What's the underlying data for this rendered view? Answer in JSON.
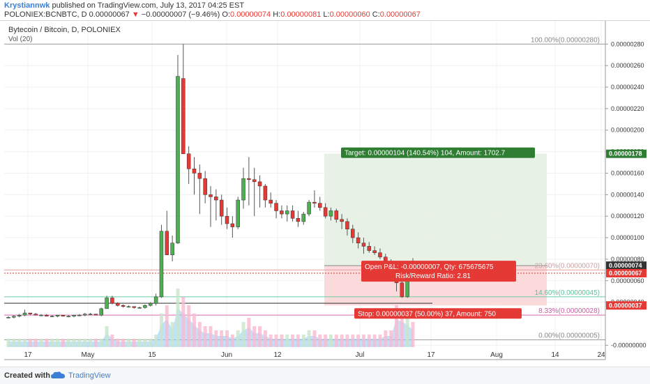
{
  "header": {
    "author": "Krystiannwk",
    "published_text": "published on TradingView.com, July 13, 2017 04:25 EST",
    "symbol": "POLONIEX:BCNBTC, D",
    "last": "0.00000067",
    "change": "−0.00000007 (−9.46%)",
    "o_label": "O:",
    "o_val": "0.00000074",
    "h_label": "H:",
    "h_val": "0.00000081",
    "l_label": "L:",
    "l_val": "0.00000060",
    "c_label": "C:",
    "c_val": "0.00000067"
  },
  "legend": {
    "title": "Bytecoin / Bitcoin, D, POLONIEX",
    "vol": "Vol (20)"
  },
  "footer": {
    "created": "Created with",
    "brand": "TradingView"
  },
  "colors": {
    "up": "#4caf50",
    "down": "#e53935",
    "target_bg": "#e6efe3",
    "stop_bg": "#f9d6d6",
    "axis": "#555555"
  },
  "chart_data": {
    "type": "candlestick",
    "title": "Bytecoin / Bitcoin, D, POLONIEX",
    "y_ticks": [
      "0.00000280",
      "0.00000260",
      "0.00000240",
      "0.00000220",
      "0.00000200",
      "0.00000180",
      "0.00000160",
      "0.00000140",
      "0.00000120",
      "0.00000100",
      "0.00000080",
      "0.00000060",
      "0.00000040",
      "-0.00000000"
    ],
    "y_tick_values": [
      280,
      260,
      240,
      220,
      200,
      180,
      160,
      140,
      120,
      100,
      80,
      60,
      40,
      0
    ],
    "ylim_e8": [
      -3,
      286
    ],
    "x_ticks": [
      "17",
      "May",
      "15",
      "Jun",
      "12",
      "Jul",
      "17",
      "Aug",
      "14",
      "24"
    ],
    "candles_e8": [
      [
        26,
        27,
        25,
        26
      ],
      [
        26,
        28,
        25,
        27
      ],
      [
        27,
        29,
        26,
        28
      ],
      [
        28,
        33,
        27,
        30
      ],
      [
        30,
        30,
        28,
        29
      ],
      [
        29,
        30,
        28,
        28
      ],
      [
        28,
        29,
        27,
        28
      ],
      [
        28,
        29,
        27,
        27
      ],
      [
        27,
        28,
        27,
        27
      ],
      [
        27,
        28,
        26,
        28
      ],
      [
        28,
        28,
        27,
        27
      ],
      [
        27,
        28,
        26,
        27
      ],
      [
        27,
        28,
        26,
        28
      ],
      [
        28,
        29,
        27,
        28
      ],
      [
        28,
        30,
        27,
        29
      ],
      [
        29,
        30,
        28,
        29
      ],
      [
        29,
        29,
        28,
        28
      ],
      [
        28,
        35,
        27,
        34
      ],
      [
        34,
        46,
        34,
        44
      ],
      [
        44,
        46,
        38,
        39
      ],
      [
        39,
        40,
        36,
        37
      ],
      [
        37,
        38,
        35,
        36
      ],
      [
        36,
        37,
        35,
        36
      ],
      [
        36,
        36,
        34,
        35
      ],
      [
        35,
        36,
        34,
        35
      ],
      [
        35,
        38,
        34,
        37
      ],
      [
        37,
        40,
        36,
        39
      ],
      [
        39,
        48,
        37,
        45
      ],
      [
        45,
        112,
        44,
        106
      ],
      [
        106,
        125,
        84,
        84
      ],
      [
        84,
        102,
        78,
        95
      ],
      [
        95,
        270,
        94,
        250
      ],
      [
        248,
        280,
        200,
        178
      ],
      [
        178,
        185,
        150,
        164
      ],
      [
        164,
        175,
        140,
        160
      ],
      [
        160,
        168,
        122,
        155
      ],
      [
        155,
        162,
        132,
        140
      ],
      [
        140,
        148,
        110,
        138
      ],
      [
        138,
        145,
        116,
        135
      ],
      [
        135,
        140,
        112,
        120
      ],
      [
        120,
        128,
        108,
        113
      ],
      [
        113,
        120,
        100,
        110
      ],
      [
        110,
        138,
        108,
        135
      ],
      [
        135,
        165,
        127,
        155
      ],
      [
        155,
        175,
        130,
        154
      ],
      [
        154,
        165,
        120,
        152
      ],
      [
        152,
        158,
        128,
        148
      ],
      [
        148,
        150,
        128,
        135
      ],
      [
        135,
        142,
        128,
        132
      ],
      [
        132,
        135,
        118,
        125
      ],
      [
        125,
        130,
        118,
        122
      ],
      [
        122,
        130,
        115,
        125
      ],
      [
        125,
        130,
        115,
        118
      ],
      [
        118,
        125,
        110,
        115
      ],
      [
        115,
        124,
        112,
        122
      ],
      [
        122,
        135,
        120,
        133
      ],
      [
        133,
        144,
        128,
        132
      ],
      [
        132,
        138,
        125,
        128
      ],
      [
        128,
        132,
        118,
        120
      ],
      [
        120,
        128,
        116,
        125
      ],
      [
        125,
        127,
        114,
        117
      ],
      [
        117,
        122,
        108,
        115
      ],
      [
        115,
        118,
        102,
        108
      ],
      [
        108,
        112,
        95,
        100
      ],
      [
        100,
        105,
        90,
        95
      ],
      [
        95,
        100,
        85,
        92
      ],
      [
        92,
        96,
        86,
        88
      ],
      [
        88,
        92,
        84,
        86
      ],
      [
        86,
        90,
        80,
        82
      ],
      [
        82,
        85,
        75,
        76
      ],
      [
        76,
        80,
        72,
        74
      ],
      [
        74,
        75,
        50,
        58
      ],
      [
        58,
        75,
        44,
        45
      ],
      [
        45,
        74,
        44,
        72
      ],
      [
        74,
        81,
        60,
        67
      ]
    ],
    "volumes_rel": [
      2,
      2,
      2,
      2,
      2,
      2,
      2,
      2,
      2,
      2,
      2,
      2,
      2,
      2,
      2,
      2,
      2,
      2,
      5,
      3,
      2,
      2,
      2,
      2,
      2,
      2,
      2,
      3,
      8,
      10,
      6,
      14,
      12,
      10,
      8,
      6,
      5,
      5,
      4,
      4,
      4,
      3,
      4,
      6,
      7,
      5,
      5,
      4,
      3,
      3,
      3,
      3,
      3,
      3,
      3,
      4,
      4,
      3,
      3,
      3,
      3,
      3,
      3,
      3,
      3,
      3,
      3,
      3,
      3,
      4,
      4,
      10,
      9,
      8,
      6
    ],
    "fib_levels": [
      {
        "label": "100.00%(0.00000280)",
        "value": 280
      },
      {
        "label": "23.60%(0.00000070)",
        "value": 70
      },
      {
        "label": "14.60%(0.00000045)",
        "value": 45
      },
      {
        "label": "8.33%(0.00000028)",
        "value": 28
      },
      {
        "label": "0.00%(0.00000005)",
        "value": 5
      }
    ],
    "position": {
      "entry": 74,
      "target": 178,
      "stop": 37,
      "target_text": "Target: 0.00000104 (140.54%) 104, Amount: 1702.7",
      "stop_text": "Stop: 0.00000037 (50.00%) 37, Amount: 750",
      "pnl_text": "Open P&L: -0.00000007, Qty: 675675675",
      "rr_text": "Risk/Reward Ratio: 2.81"
    },
    "price_tags": [
      {
        "label": "0.00000178",
        "value": 178,
        "kind": "green"
      },
      {
        "label": "0.00000074",
        "value": 74,
        "kind": "dark"
      },
      {
        "label": "0.00000067",
        "value": 67,
        "kind": "red"
      },
      {
        "label": "0.00000037",
        "value": 37,
        "kind": "red"
      }
    ]
  }
}
